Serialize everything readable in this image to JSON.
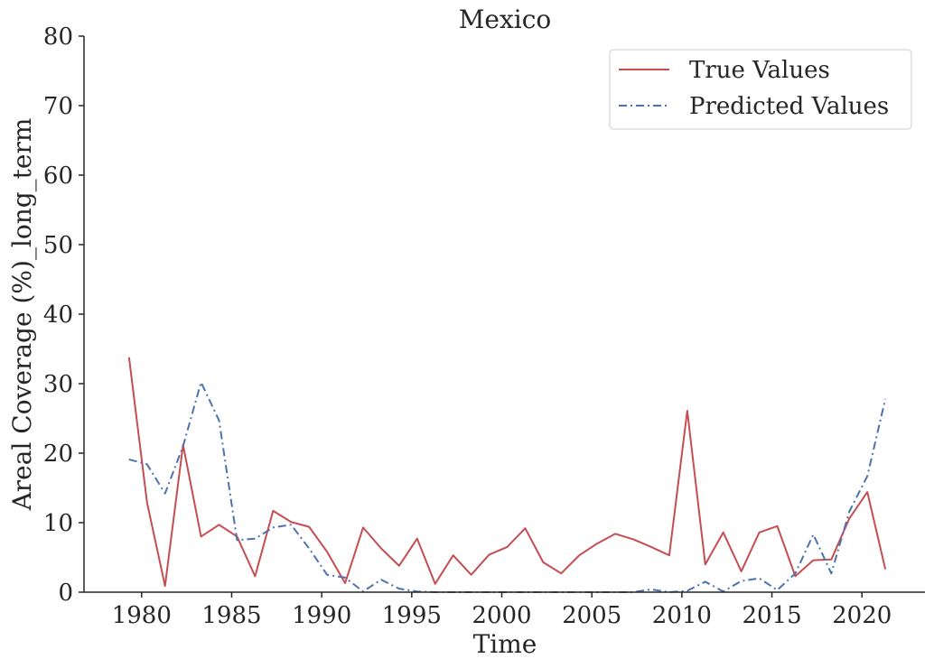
{
  "chart_data": {
    "type": "line",
    "title": "Mexico",
    "xlabel": "Time",
    "ylabel": "Areal Coverage (%)_long_term",
    "xlim": [
      1976.8,
      2023.5
    ],
    "ylim": [
      0,
      80
    ],
    "xticks": [
      1980,
      1985,
      1990,
      1995,
      2000,
      2005,
      2010,
      2015,
      2020
    ],
    "yticks": [
      0,
      10,
      20,
      30,
      40,
      50,
      60,
      70,
      80
    ],
    "legend_position": "top-right",
    "x": [
      1979.3,
      1980.3,
      1981.3,
      1982.3,
      1983.3,
      1984.3,
      1985.3,
      1986.3,
      1987.3,
      1988.3,
      1989.3,
      1990.3,
      1991.3,
      1992.3,
      1993.3,
      1994.3,
      1995.3,
      1996.3,
      1997.3,
      1998.3,
      1999.3,
      2000.3,
      2001.3,
      2002.3,
      2003.3,
      2004.3,
      2005.3,
      2006.3,
      2007.3,
      2008.3,
      2009.3,
      2010.3,
      2011.3,
      2012.3,
      2013.3,
      2014.3,
      2015.3,
      2016.3,
      2017.3,
      2018.3,
      2019.3,
      2020.3,
      2021.3
    ],
    "series": [
      {
        "name": "True Values",
        "color": "#c44e52",
        "style": "solid",
        "values": [
          33.8,
          12.9,
          0.9,
          21.2,
          8.0,
          9.7,
          8.0,
          2.3,
          11.7,
          10.1,
          9.4,
          5.8,
          1.3,
          9.3,
          6.3,
          3.8,
          7.7,
          1.2,
          5.3,
          2.5,
          5.4,
          6.5,
          9.2,
          4.3,
          2.7,
          5.3,
          7.0,
          8.4,
          7.6,
          6.5,
          5.3,
          26.1,
          4.0,
          8.6,
          3.0,
          8.6,
          9.5,
          2.3,
          4.6,
          4.7,
          10.6,
          14.4,
          3.3
        ]
      },
      {
        "name": "Predicted Values",
        "color": "#4c72b0",
        "style": "dashdot",
        "values": [
          19.1,
          18.4,
          14.2,
          21.0,
          30.2,
          24.7,
          7.5,
          7.7,
          9.3,
          9.7,
          6.3,
          2.5,
          2.1,
          0.1,
          1.8,
          0.5,
          0.1,
          0.0,
          0.0,
          0.0,
          0.0,
          0.0,
          0.0,
          0.0,
          0.0,
          0.0,
          0.0,
          0.0,
          0.0,
          0.4,
          0.0,
          0.2,
          1.5,
          0.1,
          1.6,
          2.0,
          0.3,
          2.7,
          8.3,
          2.7,
          11.6,
          16.7,
          27.8
        ]
      }
    ]
  }
}
